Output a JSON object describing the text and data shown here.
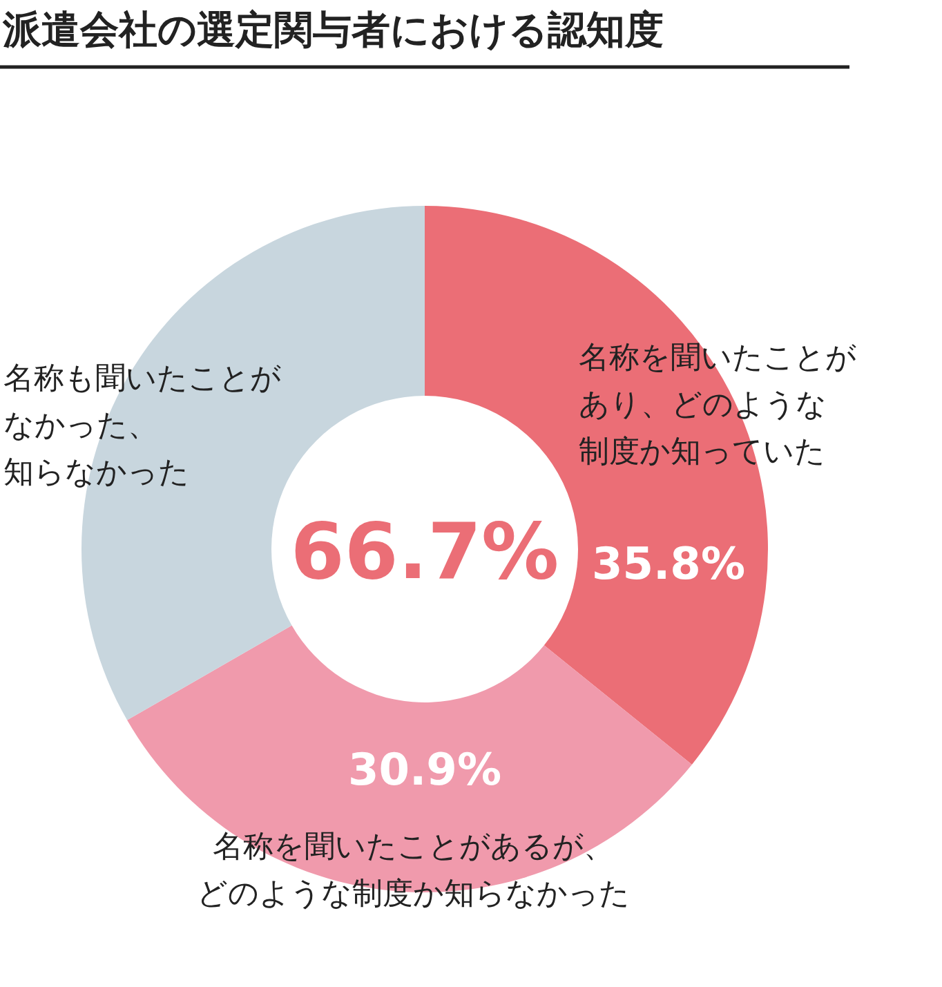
{
  "chart_data": {
    "type": "donut",
    "title": "派遣会社の選定関与者における認知度",
    "categories": [
      "名称を聞いたことがあり、どのような制度か知っていた",
      "名称を聞いたことがあるが、どのような制度か知らなかった",
      "名称も聞いたことがなかった、知らなかった"
    ],
    "values": [
      35.8,
      30.9,
      33.3
    ],
    "colors": [
      "#eb6e76",
      "#f09aac",
      "#c8d6de"
    ],
    "value_labels": [
      "35.8%",
      "30.9%",
      null
    ],
    "annotations": [
      "66.7%"
    ]
  }
}
